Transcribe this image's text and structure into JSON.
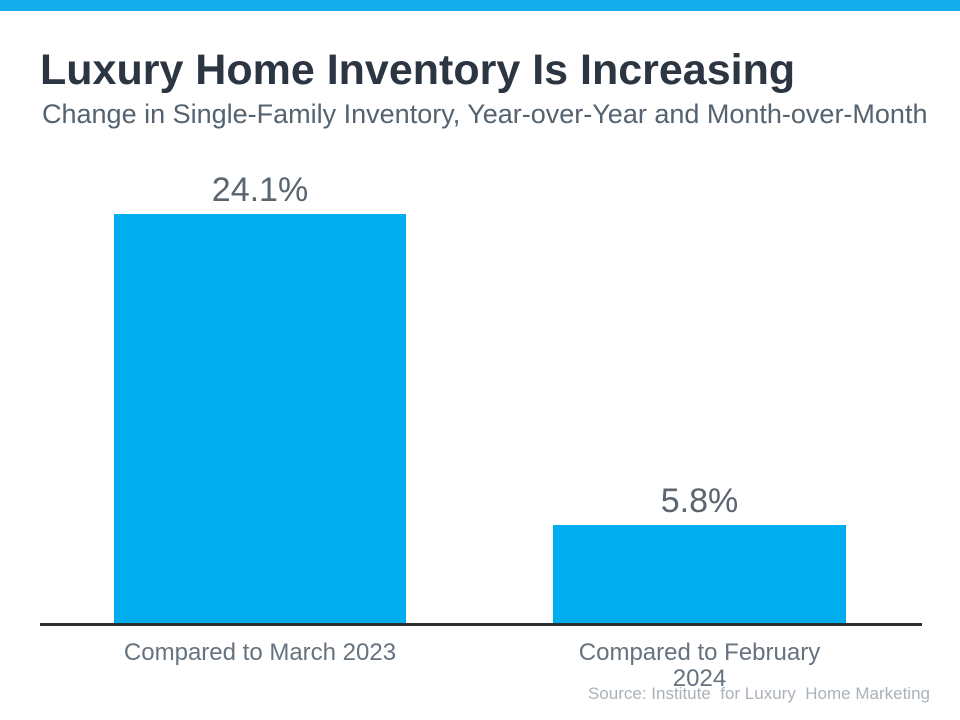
{
  "colors": {
    "top_bar": "#15ACEC",
    "bar": "#00AEEF",
    "title_text": "#2B3642",
    "subtitle_text": "#54636F",
    "value_label_text": "#5A6570",
    "category_label_text": "#66737F",
    "source_text": "#A9B2BA",
    "axis_line": "#2B2E33"
  },
  "chart_data": {
    "type": "bar",
    "title": "Luxury Home Inventory Is Increasing",
    "subtitle": "Change in Single-Family Inventory, Year-over-Year and Month-over-Month",
    "categories": [
      "Compared to March 2023",
      "Compared to February 2024"
    ],
    "values": [
      24.1,
      5.8
    ],
    "value_labels": [
      "24.1%",
      "5.8%"
    ],
    "unit": "%",
    "ylim": [
      0,
      24.1
    ],
    "grid": false,
    "legend": false,
    "bar_color": "#00AEEF"
  },
  "footer": {
    "source": "Source: Institute  for Luxury  Home Marketing"
  }
}
